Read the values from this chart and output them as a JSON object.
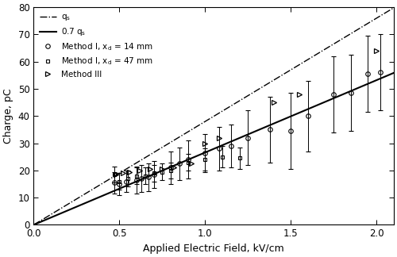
{
  "xlabel": "Applied Electric Field, kV/cm",
  "ylabel": "Charge, pC",
  "xlim": [
    0,
    2.1
  ],
  "ylim": [
    0,
    80
  ],
  "xticks": [
    0,
    0.5,
    1.0,
    1.5,
    2.0
  ],
  "yticks": [
    0,
    10,
    20,
    30,
    40,
    50,
    60,
    70,
    80
  ],
  "qs_slope": 38.0,
  "solid_slope": 26.6,
  "method1_14": {
    "x": [
      0.47,
      0.5,
      0.54,
      0.6,
      0.63,
      0.67,
      0.7,
      0.8,
      0.85,
      0.9,
      1.0,
      1.08,
      1.15,
      1.25,
      1.38,
      1.5,
      1.6,
      1.75,
      1.85,
      1.95,
      2.02
    ],
    "y": [
      15.5,
      15.0,
      16.0,
      16.5,
      17.0,
      17.5,
      18.5,
      21.0,
      22.5,
      24.0,
      26.5,
      28.0,
      29.0,
      32.0,
      35.0,
      34.5,
      40.0,
      48.0,
      48.5,
      55.5,
      56.0
    ],
    "yerr": [
      4,
      4,
      4,
      5,
      5,
      5,
      5,
      6,
      6,
      7,
      7,
      8,
      8,
      10,
      12,
      14,
      13,
      14,
      14,
      14,
      14
    ]
  },
  "method1_47": {
    "x": [
      0.47,
      0.5,
      0.55,
      0.6,
      0.65,
      0.7,
      0.75,
      0.8,
      0.9,
      1.0,
      1.1,
      1.2
    ],
    "y": [
      18.5,
      16.0,
      17.0,
      18.0,
      18.0,
      19.0,
      19.5,
      20.0,
      23.0,
      24.0,
      25.0,
      24.5
    ],
    "yerr": [
      3,
      3,
      3,
      3,
      3,
      3,
      3,
      3,
      3,
      4,
      4,
      4
    ]
  },
  "method3": {
    "x": [
      0.48,
      0.52,
      0.56,
      0.62,
      0.68,
      0.75,
      0.82,
      0.92,
      1.0,
      1.08,
      1.4,
      1.55,
      2.0
    ],
    "y": [
      18.5,
      19.0,
      19.5,
      20.0,
      20.5,
      20.5,
      21.0,
      22.5,
      30.0,
      32.0,
      45.0,
      48.0,
      64.0
    ]
  },
  "figure_width": 5.0,
  "figure_height": 3.24,
  "dpi": 100
}
